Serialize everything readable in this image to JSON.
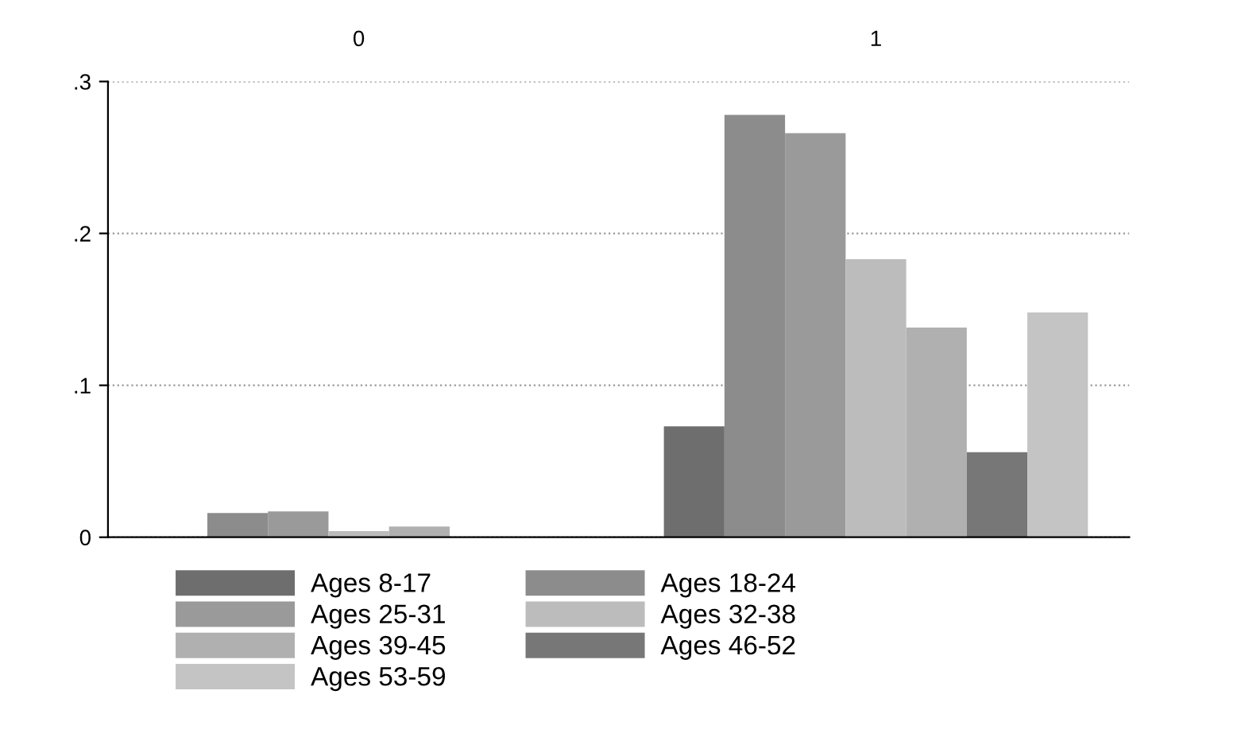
{
  "chart_data": {
    "type": "bar",
    "categories": [
      "0",
      "1"
    ],
    "ylim": [
      0,
      0.3
    ],
    "yticks": [
      {
        "value": 0,
        "label": "0"
      },
      {
        "value": 0.1,
        "label": ".1"
      },
      {
        "value": 0.2,
        "label": ".2"
      },
      {
        "value": 0.3,
        "label": ".3"
      }
    ],
    "grid": "y",
    "legend": "bottom",
    "series": [
      {
        "name": "Ages 8-17",
        "color": "#6e6e6e",
        "values": [
          0,
          0.073
        ]
      },
      {
        "name": "Ages 18-24",
        "color": "#8c8c8c",
        "values": [
          0.016,
          0.278
        ]
      },
      {
        "name": "Ages 25-31",
        "color": "#9a9a9a",
        "values": [
          0.017,
          0.266
        ]
      },
      {
        "name": "Ages 32-38",
        "color": "#bcbcbc",
        "values": [
          0.004,
          0.183
        ]
      },
      {
        "name": "Ages 39-45",
        "color": "#b0b0b0",
        "values": [
          0.007,
          0.138
        ]
      },
      {
        "name": "Ages 46-52",
        "color": "#777777",
        "values": [
          0,
          0.056
        ]
      },
      {
        "name": "Ages 53-59",
        "color": "#c4c4c4",
        "values": [
          0,
          0.148
        ]
      }
    ]
  }
}
